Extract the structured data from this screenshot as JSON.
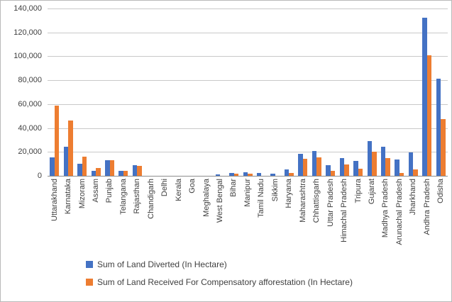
{
  "chart_data": {
    "type": "bar",
    "title": "",
    "categories": [
      "Uttarakhand",
      "Karnataka",
      "Mizoram",
      "Assam",
      "Punjab",
      "Telangana",
      "Rajasthan",
      "Chandigarh",
      "Delhi",
      "Kerala",
      "Goa",
      "Meghalaya",
      "West Bengal",
      "Bihar",
      "Manipur",
      "Tamil Nadu",
      "Sikkim",
      "Haryana",
      "Maharashtra",
      "Chhattisgarh",
      "Uttar Pradesh",
      "Himachal Pradesh",
      "Tripura",
      "Gujarat",
      "Madhya Pradesh",
      "Arunachal Pradesh",
      "Jharkhand",
      "Andhra Pradesh",
      "Odisha"
    ],
    "series": [
      {
        "name": "Sum of Land Diverted (In Hectare)",
        "color": "#4472C4",
        "values": [
          15500,
          24500,
          9800,
          4200,
          12800,
          4300,
          8800,
          0,
          0,
          0,
          0,
          0,
          1000,
          2600,
          2750,
          2200,
          2000,
          5100,
          18200,
          20500,
          8700,
          15000,
          12600,
          29000,
          24300,
          13500,
          19400,
          132400,
          81400
        ]
      },
      {
        "name": "Sum of Land Received For Compensatory afforestation (In Hectare)",
        "color": "#ED7D31",
        "values": [
          58800,
          46300,
          16200,
          6300,
          13300,
          4400,
          8500,
          0,
          0,
          0,
          0,
          0,
          0,
          1650,
          1850,
          0,
          0,
          2350,
          14100,
          15600,
          4400,
          9300,
          6200,
          20000,
          14600,
          2200,
          5100,
          101000,
          47600
        ]
      }
    ],
    "y_axis": {
      "min": 0,
      "max": 140000,
      "step": 20000,
      "tick_labels": [
        "140,000",
        "120,000",
        "100,000",
        "80,000",
        "60,000",
        "40,000",
        "20,000",
        "0"
      ]
    },
    "x_axis": {
      "label": ""
    },
    "legend": {
      "position": "bottom-left"
    },
    "grid": true
  }
}
